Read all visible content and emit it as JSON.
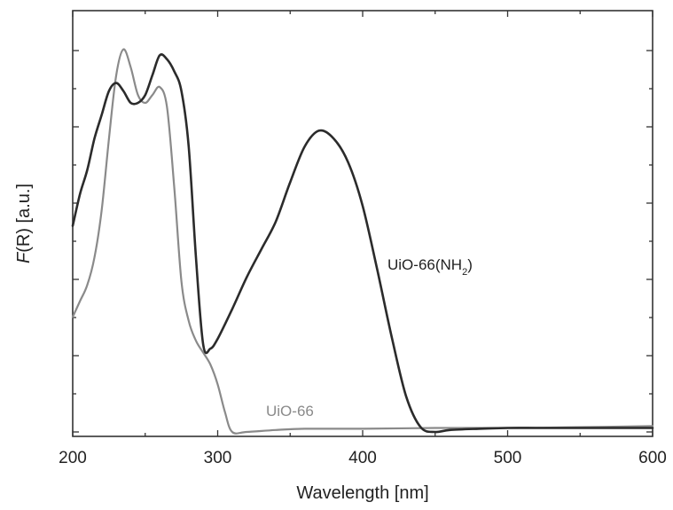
{
  "chart_data": {
    "type": "line",
    "title": "",
    "xlabel": "Wavelength [nm]",
    "ylabel_italic": "F",
    "ylabel_rest": "(R) [a.u.]",
    "xlim": [
      200,
      600
    ],
    "ylim": [
      0,
      1.05
    ],
    "x_ticks": [
      200,
      300,
      400,
      500,
      600
    ],
    "y_tick_labels_shown": false,
    "grid": false,
    "legend": "none",
    "series": [
      {
        "name": "UiO-66(NH",
        "name_subscript": "2",
        "name_suffix": ")",
        "color": "#2b2b2b",
        "x": [
          200,
          205,
          210,
          215,
          220,
          225,
          230,
          235,
          240,
          245,
          250,
          255,
          260,
          265,
          270,
          275,
          280,
          285,
          290,
          295,
          300,
          310,
          320,
          330,
          340,
          350,
          360,
          370,
          380,
          390,
          400,
          410,
          420,
          430,
          440,
          450,
          460,
          480,
          500,
          520,
          540,
          560,
          580,
          600
        ],
        "y": [
          0.52,
          0.6,
          0.66,
          0.74,
          0.8,
          0.86,
          0.88,
          0.86,
          0.83,
          0.83,
          0.85,
          0.9,
          0.95,
          0.94,
          0.91,
          0.86,
          0.72,
          0.44,
          0.22,
          0.21,
          0.235,
          0.31,
          0.39,
          0.46,
          0.53,
          0.63,
          0.72,
          0.76,
          0.74,
          0.68,
          0.57,
          0.41,
          0.24,
          0.09,
          0.012,
          0.0,
          0.005,
          0.008,
          0.01,
          0.01,
          0.01,
          0.01,
          0.01,
          0.01
        ]
      },
      {
        "name": "UiO-66",
        "color": "#8a8a8a",
        "x": [
          200,
          205,
          210,
          215,
          220,
          225,
          230,
          235,
          240,
          245,
          250,
          255,
          260,
          265,
          270,
          275,
          280,
          285,
          290,
          295,
          300,
          305,
          310,
          320,
          340,
          360,
          400,
          450,
          500,
          550,
          600
        ],
        "y": [
          0.29,
          0.33,
          0.37,
          0.44,
          0.56,
          0.74,
          0.9,
          0.965,
          0.92,
          0.85,
          0.83,
          0.85,
          0.87,
          0.82,
          0.62,
          0.38,
          0.28,
          0.23,
          0.2,
          0.17,
          0.12,
          0.05,
          0.0,
          0.0,
          0.005,
          0.008,
          0.008,
          0.01,
          0.01,
          0.012,
          0.015
        ]
      }
    ]
  }
}
